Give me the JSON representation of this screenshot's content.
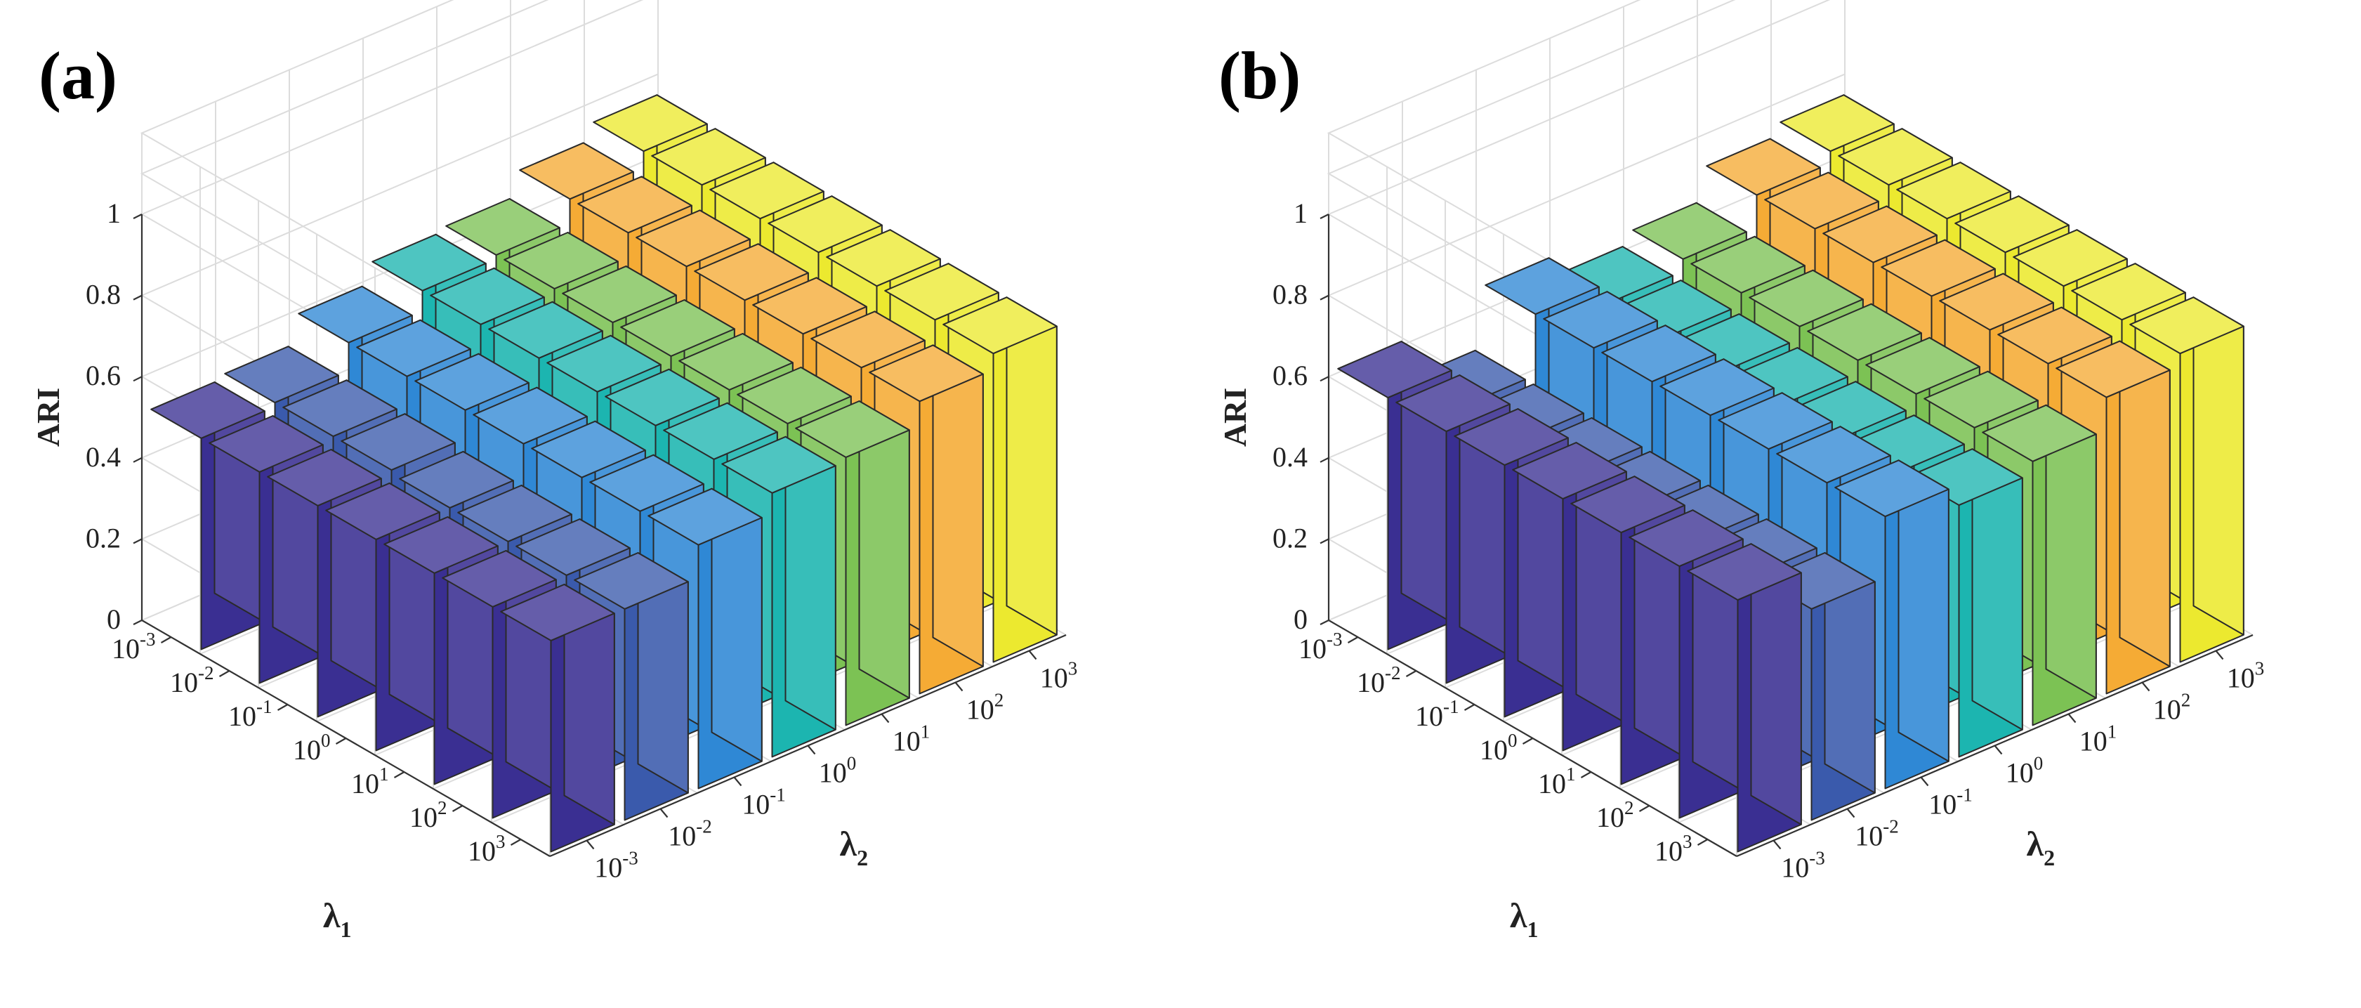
{
  "panels": [
    {
      "label": "(a)"
    },
    {
      "label": "(b)"
    }
  ],
  "colors": [
    "#3a2f92",
    "#3a5aac",
    "#2f88d5",
    "#1cb5b0",
    "#7cc254",
    "#f5ab35",
    "#ece92f"
  ],
  "chart_data": [
    {
      "type": "bar3d",
      "panel": "(a)",
      "zlabel": "ARI",
      "xlabel": "λ1",
      "ylabel": "λ2",
      "categories_lambda1": [
        "10^-3",
        "10^-2",
        "10^-1",
        "10^0",
        "10^1",
        "10^2",
        "10^3"
      ],
      "categories_lambda2": [
        "10^-3",
        "10^-2",
        "10^-1",
        "10^0",
        "10^1",
        "10^2",
        "10^3"
      ],
      "zlim": [
        0,
        1
      ],
      "zticks": [
        "0",
        "0.2",
        "0.4",
        "0.6",
        "0.8",
        "1"
      ],
      "values_by_lambda2": [
        [
          0.52,
          0.52,
          0.52,
          0.52,
          0.52,
          0.52,
          0.52
        ],
        [
          0.53,
          0.53,
          0.53,
          0.52,
          0.52,
          0.52,
          0.52
        ],
        [
          0.6,
          0.6,
          0.6,
          0.6,
          0.6,
          0.6,
          0.6
        ],
        [
          0.65,
          0.65,
          0.65,
          0.65,
          0.65,
          0.65,
          0.65
        ],
        [
          0.66,
          0.66,
          0.66,
          0.66,
          0.66,
          0.66,
          0.66
        ],
        [
          0.72,
          0.72,
          0.72,
          0.72,
          0.72,
          0.72,
          0.72
        ],
        [
          0.76,
          0.76,
          0.76,
          0.76,
          0.76,
          0.76,
          0.76
        ]
      ]
    },
    {
      "type": "bar3d",
      "panel": "(b)",
      "zlabel": "ARI",
      "xlabel": "λ1",
      "ylabel": "λ2",
      "categories_lambda1": [
        "10^-3",
        "10^-2",
        "10^-1",
        "10^0",
        "10^1",
        "10^2",
        "10^3"
      ],
      "categories_lambda2": [
        "10^-3",
        "10^-2",
        "10^-1",
        "10^0",
        "10^1",
        "10^2",
        "10^3"
      ],
      "zlim": [
        0,
        1
      ],
      "zticks": [
        "0",
        "0.2",
        "0.4",
        "0.6",
        "0.8",
        "1"
      ],
      "values_by_lambda2": [
        [
          0.62,
          0.62,
          0.62,
          0.62,
          0.62,
          0.62,
          0.62
        ],
        [
          0.52,
          0.52,
          0.52,
          0.52,
          0.52,
          0.52,
          0.52
        ],
        [
          0.67,
          0.67,
          0.67,
          0.67,
          0.67,
          0.67,
          0.67
        ],
        [
          0.62,
          0.62,
          0.62,
          0.62,
          0.62,
          0.62,
          0.62
        ],
        [
          0.65,
          0.65,
          0.65,
          0.65,
          0.65,
          0.65,
          0.65
        ],
        [
          0.73,
          0.73,
          0.73,
          0.73,
          0.73,
          0.73,
          0.73
        ],
        [
          0.76,
          0.76,
          0.76,
          0.76,
          0.76,
          0.76,
          0.76
        ]
      ]
    }
  ]
}
